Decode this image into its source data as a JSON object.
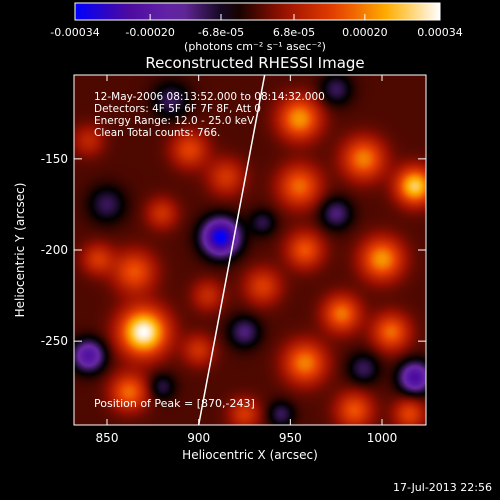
{
  "colorbar": {
    "ticks": [
      "-0.00034",
      "-0.00020",
      "-6.8e-05",
      "6.8e-05",
      "0.00020",
      "0.00034"
    ],
    "tick_values": [
      -0.00034,
      -0.0002,
      -6.8e-05,
      6.8e-05,
      0.0002,
      0.00034
    ],
    "unit": "(photons cm⁻² s⁻¹ asec⁻²)",
    "range": [
      -0.00034,
      0.00034
    ],
    "colors": [
      "#0000ff",
      "#4b0a9e",
      "#6a2aa8",
      "#000000",
      "#9a1000",
      "#e84000",
      "#ffb000",
      "#ffffff"
    ]
  },
  "chart_data": {
    "type": "heatmap",
    "title": "Reconstructed RHESSI Image",
    "xlabel": "Heliocentric X (arcsec)",
    "ylabel": "Heliocentric Y (arcsec)",
    "xlim": [
      832,
      1024
    ],
    "ylim": [
      -296,
      -104
    ],
    "xticks": [
      850,
      900,
      950,
      1000
    ],
    "yticks": [
      -250,
      -200,
      -150
    ],
    "xtick_labels": [
      "850",
      "900",
      "950",
      "1000"
    ],
    "ytick_labels": [
      "-250",
      "-200",
      "-150"
    ],
    "annotations": [
      "12-May-2006 08:13:52.000 to 08:14:32.000",
      "Detectors: 4F 5F 6F 7F 8F, Att 0",
      "Energy Range: 12.0 - 25.0 keV",
      "Clean     Total counts: 766."
    ],
    "peak_label": "Position of Peak = [870,-243]",
    "peak": [
      870,
      -243
    ],
    "limb": [
      [
        900,
        -296
      ],
      [
        936,
        -104
      ]
    ],
    "blobs": [
      {
        "x": 870,
        "y": -245,
        "amp": 0.00034,
        "s": 9
      },
      {
        "x": 865,
        "y": -212,
        "amp": 0.00016,
        "s": 8
      },
      {
        "x": 862,
        "y": -278,
        "amp": 0.00018,
        "s": 7
      },
      {
        "x": 845,
        "y": -205,
        "amp": 0.00012,
        "s": 6
      },
      {
        "x": 895,
        "y": -145,
        "amp": 0.00014,
        "s": 7
      },
      {
        "x": 915,
        "y": -160,
        "amp": 0.00012,
        "s": 7
      },
      {
        "x": 880,
        "y": -180,
        "amp": 0.00011,
        "s": 6
      },
      {
        "x": 935,
        "y": -220,
        "amp": 0.00013,
        "s": 7
      },
      {
        "x": 905,
        "y": -225,
        "amp": 0.0001,
        "s": 6
      },
      {
        "x": 900,
        "y": -255,
        "amp": 0.00011,
        "s": 6
      },
      {
        "x": 925,
        "y": -290,
        "amp": 0.00012,
        "s": 6
      },
      {
        "x": 955,
        "y": -128,
        "amp": 0.00022,
        "s": 8
      },
      {
        "x": 955,
        "y": -165,
        "amp": 0.00018,
        "s": 8
      },
      {
        "x": 958,
        "y": -200,
        "amp": 0.00016,
        "s": 7
      },
      {
        "x": 958,
        "y": -262,
        "amp": 0.0002,
        "s": 8
      },
      {
        "x": 978,
        "y": -235,
        "amp": 0.00019,
        "s": 7
      },
      {
        "x": 990,
        "y": -150,
        "amp": 0.0002,
        "s": 8
      },
      {
        "x": 1000,
        "y": -205,
        "amp": 0.00022,
        "s": 8
      },
      {
        "x": 1018,
        "y": -165,
        "amp": 0.00028,
        "s": 7
      },
      {
        "x": 1005,
        "y": -245,
        "amp": 0.00018,
        "s": 7
      },
      {
        "x": 985,
        "y": -288,
        "amp": 0.00016,
        "s": 7
      },
      {
        "x": 1015,
        "y": -290,
        "amp": 0.00014,
        "s": 6
      },
      {
        "x": 840,
        "y": -140,
        "amp": 9e-05,
        "s": 6
      },
      {
        "x": 912,
        "y": -193,
        "amp": -0.00034,
        "s": 7
      },
      {
        "x": 840,
        "y": -258,
        "amp": -0.00022,
        "s": 6
      },
      {
        "x": 885,
        "y": -118,
        "amp": -0.0001,
        "s": 7
      },
      {
        "x": 850,
        "y": -175,
        "amp": -0.0001,
        "s": 7
      },
      {
        "x": 925,
        "y": -245,
        "amp": -0.00012,
        "s": 6
      },
      {
        "x": 935,
        "y": -185,
        "amp": -9e-05,
        "s": 5
      },
      {
        "x": 975,
        "y": -180,
        "amp": -0.00012,
        "s": 6
      },
      {
        "x": 990,
        "y": -265,
        "amp": -0.0001,
        "s": 6
      },
      {
        "x": 1018,
        "y": -270,
        "amp": -0.00024,
        "s": 6
      },
      {
        "x": 975,
        "y": -112,
        "amp": -0.0001,
        "s": 6
      },
      {
        "x": 880,
        "y": -275,
        "amp": -9e-05,
        "s": 5
      },
      {
        "x": 945,
        "y": -290,
        "amp": -0.0001,
        "s": 5
      }
    ]
  },
  "timestamp": "17-Jul-2013 22:56"
}
